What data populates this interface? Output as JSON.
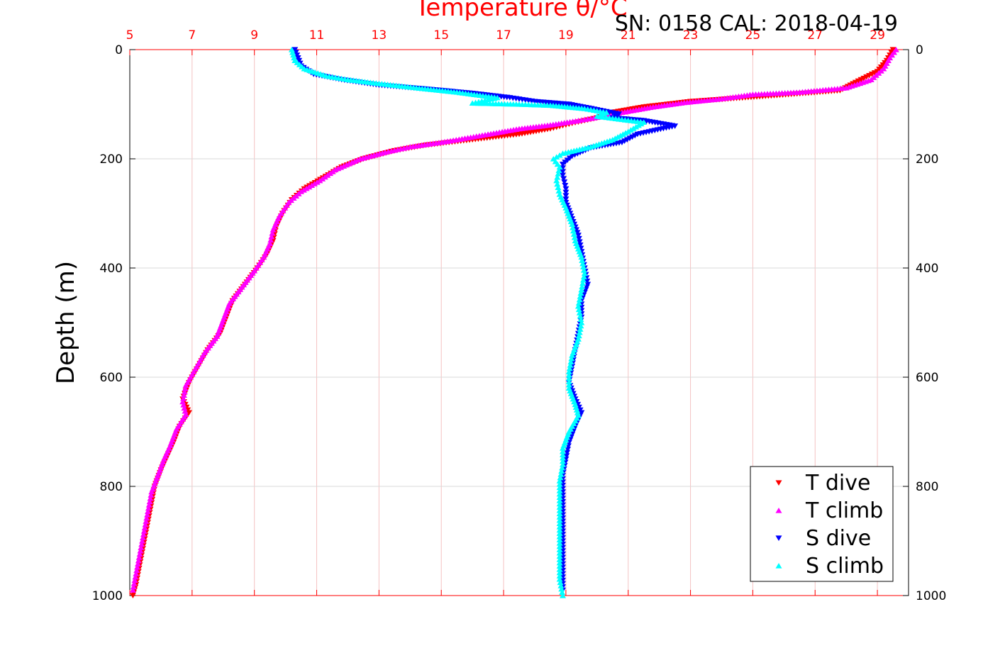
{
  "chart_data": {
    "type": "scatter",
    "title": "",
    "xlabel": "Temperature θ/°C",
    "ylabel": "Depth (m)",
    "annotation": "SN: 0158  CAL: 2018-04-19",
    "x_axis_position": "top",
    "xlim": [
      5,
      30
    ],
    "ylim": [
      0,
      1000
    ],
    "y_reversed": true,
    "xticks": [
      5,
      7,
      9,
      11,
      13,
      15,
      17,
      19,
      21,
      23,
      25,
      27,
      29
    ],
    "yticks": [
      0,
      200,
      400,
      600,
      800,
      1000
    ],
    "grid": true,
    "legend_position": "bottom-right",
    "series": [
      {
        "name": "T dive",
        "color": "#ff0000",
        "marker": "triangle-down",
        "points": [
          [
            29.5,
            0
          ],
          [
            29.3,
            20
          ],
          [
            29.0,
            40
          ],
          [
            28.3,
            60
          ],
          [
            27.8,
            75
          ],
          [
            25.5,
            85
          ],
          [
            23.0,
            95
          ],
          [
            21.5,
            105
          ],
          [
            20.5,
            115
          ],
          [
            20.0,
            125
          ],
          [
            19.2,
            135
          ],
          [
            18.5,
            145
          ],
          [
            17.5,
            155
          ],
          [
            16.0,
            165
          ],
          [
            14.5,
            175
          ],
          [
            13.5,
            185
          ],
          [
            12.5,
            200
          ],
          [
            11.8,
            215
          ],
          [
            11.2,
            235
          ],
          [
            10.6,
            255
          ],
          [
            10.2,
            275
          ],
          [
            9.9,
            300
          ],
          [
            9.7,
            325
          ],
          [
            9.6,
            350
          ],
          [
            9.4,
            375
          ],
          [
            9.1,
            400
          ],
          [
            8.7,
            430
          ],
          [
            8.3,
            460
          ],
          [
            8.1,
            490
          ],
          [
            7.9,
            520
          ],
          [
            7.5,
            550
          ],
          [
            7.2,
            580
          ],
          [
            6.9,
            610
          ],
          [
            6.7,
            640
          ],
          [
            6.9,
            665
          ],
          [
            6.6,
            690
          ],
          [
            6.4,
            720
          ],
          [
            6.2,
            745
          ],
          [
            6.0,
            770
          ],
          [
            5.8,
            800
          ],
          [
            5.7,
            830
          ],
          [
            5.6,
            860
          ],
          [
            5.5,
            890
          ],
          [
            5.4,
            920
          ],
          [
            5.3,
            950
          ],
          [
            5.2,
            980
          ],
          [
            5.1,
            1000
          ]
        ]
      },
      {
        "name": "T climb",
        "color": "#ff00ff",
        "marker": "triangle-up",
        "points": [
          [
            29.6,
            0
          ],
          [
            29.4,
            15
          ],
          [
            29.2,
            35
          ],
          [
            28.8,
            55
          ],
          [
            28.0,
            70
          ],
          [
            26.5,
            78
          ],
          [
            25.0,
            82
          ],
          [
            24.0,
            90
          ],
          [
            22.8,
            97
          ],
          [
            21.8,
            105
          ],
          [
            20.8,
            115
          ],
          [
            20.2,
            122
          ],
          [
            19.4,
            130
          ],
          [
            18.5,
            138
          ],
          [
            17.5,
            145
          ],
          [
            16.5,
            155
          ],
          [
            15.2,
            168
          ],
          [
            14.0,
            178
          ],
          [
            13.2,
            188
          ],
          [
            12.4,
            200
          ],
          [
            11.6,
            220
          ],
          [
            11.1,
            240
          ],
          [
            10.5,
            260
          ],
          [
            10.1,
            280
          ],
          [
            9.8,
            305
          ],
          [
            9.6,
            330
          ],
          [
            9.5,
            355
          ],
          [
            9.3,
            380
          ],
          [
            9.0,
            405
          ],
          [
            8.6,
            435
          ],
          [
            8.2,
            465
          ],
          [
            8.0,
            495
          ],
          [
            7.8,
            525
          ],
          [
            7.4,
            555
          ],
          [
            7.1,
            585
          ],
          [
            6.8,
            615
          ],
          [
            6.7,
            645
          ],
          [
            6.8,
            668
          ],
          [
            6.5,
            695
          ],
          [
            6.3,
            725
          ],
          [
            6.1,
            750
          ],
          [
            5.9,
            780
          ],
          [
            5.7,
            810
          ],
          [
            5.6,
            840
          ],
          [
            5.5,
            870
          ],
          [
            5.4,
            900
          ],
          [
            5.3,
            930
          ],
          [
            5.2,
            960
          ],
          [
            5.1,
            990
          ]
        ]
      },
      {
        "name": "S dive",
        "color": "#0000ff",
        "marker": "triangle-down",
        "points": [
          [
            10.3,
            0
          ],
          [
            10.4,
            15
          ],
          [
            10.5,
            30
          ],
          [
            10.9,
            45
          ],
          [
            11.8,
            55
          ],
          [
            13.0,
            65
          ],
          [
            14.5,
            72
          ],
          [
            16.0,
            80
          ],
          [
            17.2,
            88
          ],
          [
            18.0,
            95
          ],
          [
            19.1,
            100
          ],
          [
            20.0,
            110
          ],
          [
            20.7,
            118
          ],
          [
            20.5,
            125
          ],
          [
            21.5,
            130
          ],
          [
            22.5,
            140
          ],
          [
            21.3,
            155
          ],
          [
            20.8,
            170
          ],
          [
            19.8,
            180
          ],
          [
            19.2,
            195
          ],
          [
            18.9,
            210
          ],
          [
            18.9,
            230
          ],
          [
            19.0,
            255
          ],
          [
            19.0,
            280
          ],
          [
            19.2,
            310
          ],
          [
            19.4,
            340
          ],
          [
            19.5,
            370
          ],
          [
            19.6,
            400
          ],
          [
            19.7,
            430
          ],
          [
            19.5,
            460
          ],
          [
            19.5,
            490
          ],
          [
            19.4,
            520
          ],
          [
            19.3,
            550
          ],
          [
            19.2,
            580
          ],
          [
            19.1,
            610
          ],
          [
            19.3,
            640
          ],
          [
            19.5,
            665
          ],
          [
            19.3,
            690
          ],
          [
            19.1,
            720
          ],
          [
            19.0,
            750
          ],
          [
            18.9,
            780
          ],
          [
            18.9,
            810
          ],
          [
            18.9,
            840
          ],
          [
            18.9,
            870
          ],
          [
            18.9,
            900
          ],
          [
            18.9,
            930
          ],
          [
            18.9,
            960
          ],
          [
            18.9,
            990
          ]
        ]
      },
      {
        "name": "S climb",
        "color": "#00ffff",
        "marker": "triangle-up",
        "points": [
          [
            10.2,
            0
          ],
          [
            10.3,
            20
          ],
          [
            10.6,
            35
          ],
          [
            11.3,
            48
          ],
          [
            12.0,
            55
          ],
          [
            13.0,
            62
          ],
          [
            14.2,
            70
          ],
          [
            15.5,
            78
          ],
          [
            16.8,
            88
          ],
          [
            16.0,
            98
          ],
          [
            17.5,
            100
          ],
          [
            18.5,
            102
          ],
          [
            19.6,
            108
          ],
          [
            20.3,
            115
          ],
          [
            20.0,
            122
          ],
          [
            20.8,
            128
          ],
          [
            21.5,
            133
          ],
          [
            21.0,
            150
          ],
          [
            20.5,
            165
          ],
          [
            19.8,
            178
          ],
          [
            18.9,
            190
          ],
          [
            18.6,
            200
          ],
          [
            18.8,
            215
          ],
          [
            18.7,
            240
          ],
          [
            18.8,
            265
          ],
          [
            19.0,
            290
          ],
          [
            19.2,
            320
          ],
          [
            19.3,
            350
          ],
          [
            19.5,
            380
          ],
          [
            19.6,
            410
          ],
          [
            19.5,
            440
          ],
          [
            19.4,
            470
          ],
          [
            19.5,
            500
          ],
          [
            19.4,
            530
          ],
          [
            19.2,
            560
          ],
          [
            19.1,
            590
          ],
          [
            19.1,
            620
          ],
          [
            19.3,
            650
          ],
          [
            19.4,
            670
          ],
          [
            19.1,
            700
          ],
          [
            18.9,
            730
          ],
          [
            18.9,
            760
          ],
          [
            18.8,
            790
          ],
          [
            18.8,
            820
          ],
          [
            18.8,
            850
          ],
          [
            18.8,
            880
          ],
          [
            18.8,
            910
          ],
          [
            18.8,
            940
          ],
          [
            18.8,
            970
          ],
          [
            18.9,
            1000
          ]
        ]
      }
    ]
  }
}
